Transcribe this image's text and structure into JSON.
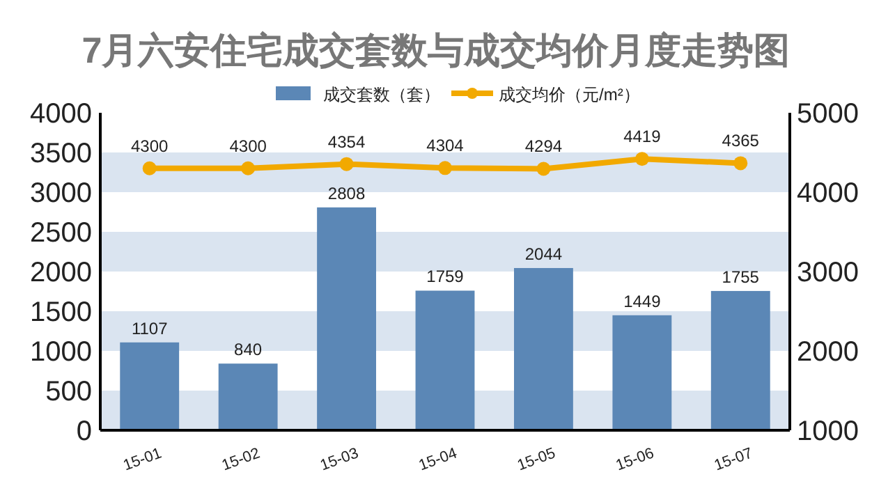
{
  "chart_data": {
    "type": "bar",
    "title": "7月六安住宅成交套数与成交均价月度走势图",
    "categories": [
      "15-01",
      "15-02",
      "15-03",
      "15-04",
      "15-05",
      "15-06",
      "15-07"
    ],
    "series": [
      {
        "name": "成交套数（套）",
        "color": "#5b87b6",
        "values": [
          1107,
          840,
          2808,
          1759,
          2044,
          1449,
          1755
        ]
      },
      {
        "name": "成交均价（元/m²）",
        "type": "line",
        "axis": "y2",
        "color": "#f2a900",
        "marker": "circle",
        "values": [
          4300,
          4300,
          4354,
          4304,
          4294,
          4419,
          4365
        ]
      }
    ],
    "ylim": [
      0,
      4000
    ],
    "yticks": [
      0,
      500,
      1000,
      1500,
      2000,
      2500,
      3000,
      3500,
      4000
    ],
    "y2lim": [
      1000,
      5000
    ],
    "y2ticks": [
      1000,
      2000,
      3000,
      4000,
      5000
    ],
    "bands": [
      {
        "axis": "y",
        "from": 0,
        "to": 500,
        "color": "#dae4f0"
      },
      {
        "axis": "y",
        "from": 1000,
        "to": 1500,
        "color": "#dae4f0"
      },
      {
        "axis": "y",
        "from": 2000,
        "to": 2500,
        "color": "#dae4f0"
      },
      {
        "axis": "y",
        "from": 3000,
        "to": 3500,
        "color": "#dae4f0"
      }
    ],
    "legend": "top",
    "data_labels": true
  }
}
